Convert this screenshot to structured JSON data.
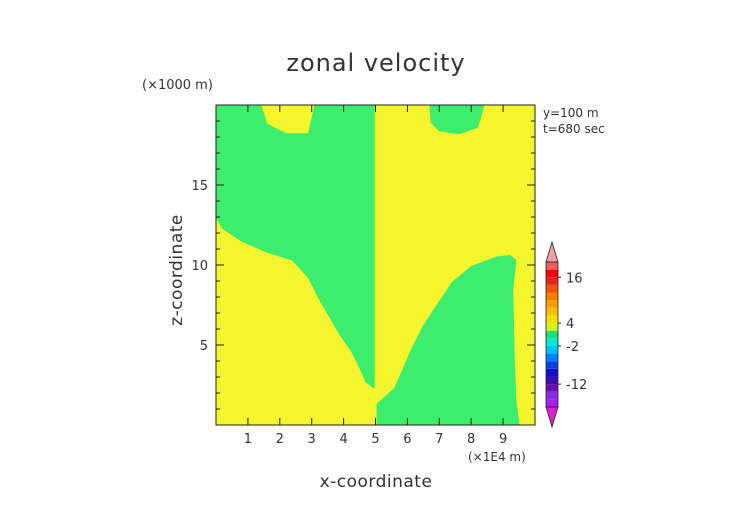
{
  "chart_data": {
    "type": "heatmap",
    "title": "zonal velocity",
    "xlabel": "x-coordinate",
    "ylabel": "z-coordinate",
    "x_unit": "(×1E4 m)",
    "y_unit": "(×1000 m)",
    "annotations": [
      "y=100 m",
      "t=680 sec"
    ],
    "xlim": [
      0,
      10
    ],
    "ylim": [
      0,
      20
    ],
    "x_ticks": [
      1,
      2,
      3,
      4,
      5,
      6,
      7,
      8,
      9
    ],
    "y_ticks": [
      5,
      10,
      15
    ],
    "colorbar": {
      "labels": [
        {
          "text": "16",
          "value": 16
        },
        {
          "text": "4",
          "value": 4
        },
        {
          "text": "-2",
          "value": -2
        },
        {
          "text": "-12",
          "value": -12
        }
      ],
      "levels": [
        -18,
        -16,
        -14,
        -12,
        -10,
        -8,
        -6,
        -4,
        -2,
        0,
        2,
        4,
        6,
        8,
        10,
        12,
        14,
        16,
        18,
        20
      ],
      "colors": [
        "#a020f0",
        "#8a2be2",
        "#6a0dad",
        "#3a0fb0",
        "#1010d0",
        "#0a40e0",
        "#0080ff",
        "#00c0ff",
        "#00e8e0",
        "#20e070",
        "#d8f020",
        "#f0e000",
        "#f8c000",
        "#f8a000",
        "#f88000",
        "#f05010",
        "#e82020",
        "#ff0000",
        "#f06060"
      ],
      "under_color": "#e020d0",
      "over_color": "#f0a0a0"
    },
    "regions": [
      {
        "name": "green-left-upper",
        "value": 1,
        "color": "#3ded6d",
        "polygon": [
          [
            0,
            20
          ],
          [
            1.4,
            20
          ],
          [
            1.6,
            18.8
          ],
          [
            2.2,
            18.2
          ],
          [
            2.9,
            18.2
          ],
          [
            3.1,
            20
          ],
          [
            4.96,
            20
          ],
          [
            4.96,
            2.3
          ],
          [
            4.7,
            2.7
          ],
          [
            4.5,
            3.6
          ],
          [
            4.25,
            4.6
          ],
          [
            3.9,
            5.6
          ],
          [
            3.55,
            6.8
          ],
          [
            3.2,
            8
          ],
          [
            2.9,
            9.2
          ],
          [
            2.4,
            10.3
          ],
          [
            1.6,
            10.8
          ],
          [
            0.8,
            11.5
          ],
          [
            0.2,
            12.3
          ],
          [
            0,
            13
          ]
        ]
      },
      {
        "name": "green-right-lower",
        "value": 1,
        "color": "#3ded6d",
        "polygon": [
          [
            5.05,
            1.3
          ],
          [
            5.6,
            2.3
          ],
          [
            5.8,
            3.2
          ],
          [
            6.1,
            4.6
          ],
          [
            6.5,
            6.2
          ],
          [
            7,
            7.7
          ],
          [
            7.4,
            8.9
          ],
          [
            8,
            9.9
          ],
          [
            8.8,
            10.5
          ],
          [
            9.2,
            10.6
          ],
          [
            9.4,
            10.3
          ],
          [
            9.3,
            8.5
          ],
          [
            9.35,
            4
          ],
          [
            9.4,
            1.5
          ],
          [
            9.5,
            0
          ],
          [
            5.05,
            0
          ]
        ]
      },
      {
        "name": "green-right-top",
        "value": 1,
        "color": "#3ded6d",
        "polygon": [
          [
            6.7,
            20
          ],
          [
            6.75,
            18.9
          ],
          [
            7,
            18.4
          ],
          [
            7.6,
            18.2
          ],
          [
            8.2,
            18.6
          ],
          [
            8.4,
            20
          ]
        ]
      }
    ],
    "background_value": 5,
    "background_color": "#f5f52e"
  }
}
